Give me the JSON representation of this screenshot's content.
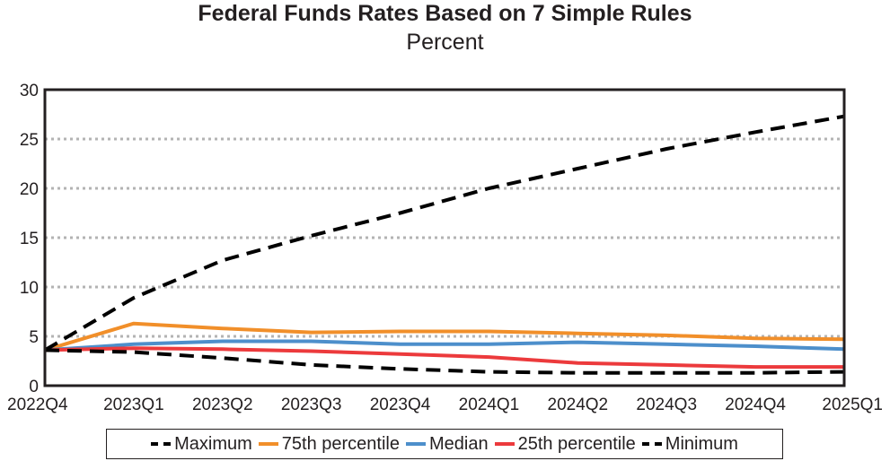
{
  "chart_data": {
    "type": "line",
    "title": "Federal Funds Rates Based on 7 Simple Rules",
    "subtitle": "Percent",
    "xlabel": "",
    "ylabel": "",
    "categories": [
      "2022Q4",
      "2023Q1",
      "2023Q2",
      "2023Q3",
      "2023Q4",
      "2024Q1",
      "2024Q2",
      "2024Q3",
      "2024Q4",
      "2025Q1"
    ],
    "ylim": [
      0,
      30
    ],
    "yticks": [
      0,
      5,
      10,
      15,
      20,
      25,
      30
    ],
    "grid": "horizontal dotted",
    "legend_position": "bottom",
    "series": [
      {
        "name": "Maximum",
        "color": "#000000",
        "style": "dashed",
        "values": [
          3.6,
          8.9,
          12.7,
          15.2,
          17.5,
          20.0,
          22.0,
          24.0,
          25.7,
          27.3
        ]
      },
      {
        "name": "75th percentile",
        "color": "#f18f2a",
        "style": "solid",
        "values": [
          3.6,
          6.3,
          5.8,
          5.4,
          5.5,
          5.5,
          5.3,
          5.1,
          4.8,
          4.7
        ]
      },
      {
        "name": "Median",
        "color": "#4d8fcb",
        "style": "solid",
        "values": [
          3.6,
          4.2,
          4.5,
          4.5,
          4.2,
          4.2,
          4.4,
          4.2,
          4.0,
          3.7
        ]
      },
      {
        "name": "25th percentile",
        "color": "#ec3a3c",
        "style": "solid",
        "values": [
          3.6,
          3.8,
          3.7,
          3.5,
          3.2,
          2.9,
          2.3,
          2.1,
          1.9,
          1.9
        ]
      },
      {
        "name": "Minimum",
        "color": "#000000",
        "style": "dashed",
        "values": [
          3.6,
          3.4,
          2.8,
          2.1,
          1.7,
          1.4,
          1.3,
          1.3,
          1.3,
          1.4
        ]
      }
    ]
  }
}
